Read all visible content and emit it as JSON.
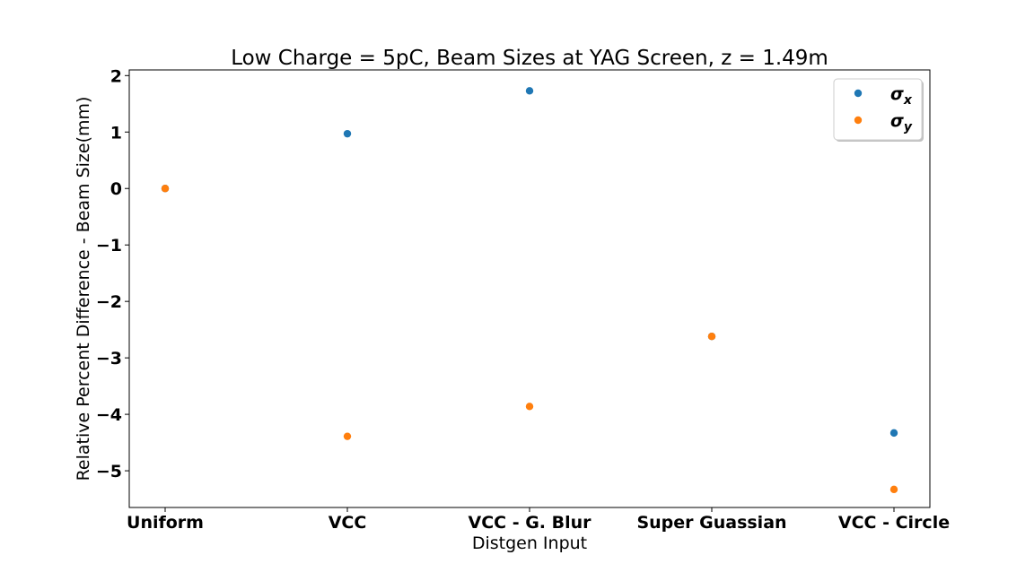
{
  "chart_data": {
    "type": "scatter",
    "title": "Low Charge = 5pC, Beam Sizes at YAG Screen, z = 1.49m",
    "xlabel": "Distgen Input",
    "ylabel": "Relative Percent Difference - Beam Size(mm)",
    "categories": [
      "Uniform",
      "VCC",
      "VCC - G. Blur",
      "Super Guassian",
      "VCC - Circle"
    ],
    "ylim": [
      -5.65,
      2.1
    ],
    "yticks": [
      2,
      1,
      0,
      -1,
      -2,
      -3,
      -4,
      -5
    ],
    "ytick_labels": [
      "2",
      "1",
      "0",
      "−1",
      "−2",
      "−3",
      "−4",
      "−5"
    ],
    "grid": false,
    "legend_position": "top-right",
    "series": [
      {
        "name": "σ",
        "subscript": "x",
        "color": "#1f77b4",
        "values": [
          0.0,
          0.97,
          1.73,
          -2.62,
          -4.33
        ]
      },
      {
        "name": "σ",
        "subscript": "y",
        "color": "#ff7f0e",
        "values": [
          0.0,
          -4.39,
          -3.86,
          -2.62,
          -5.33
        ]
      }
    ]
  }
}
